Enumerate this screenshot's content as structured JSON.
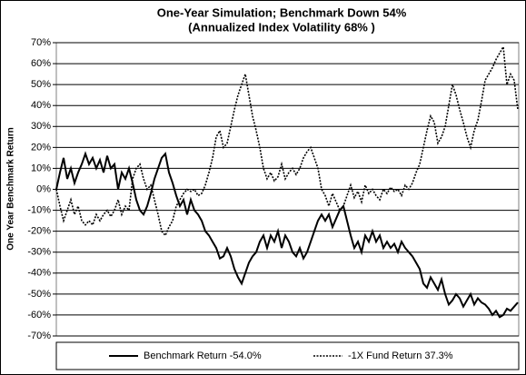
{
  "chart_data": {
    "type": "line",
    "title": "One-Year Simulation; Benchmark Down 54%",
    "subtitle": "(Annualized Index Volatility 68% )",
    "y_label": "One Year Benchmark Return",
    "ylim": [
      -70,
      70
    ],
    "yticks": [
      {
        "value": -70,
        "label": "-70%"
      },
      {
        "value": -60,
        "label": "-60%"
      },
      {
        "value": -50,
        "label": "-50%"
      },
      {
        "value": -40,
        "label": "-40%"
      },
      {
        "value": -30,
        "label": "-30%"
      },
      {
        "value": -20,
        "label": "-20%"
      },
      {
        "value": -10,
        "label": "-10%"
      },
      {
        "value": 0,
        "label": "0%"
      },
      {
        "value": 10,
        "label": "10%"
      },
      {
        "value": 20,
        "label": "20%"
      },
      {
        "value": 30,
        "label": "30%"
      },
      {
        "value": 40,
        "label": "40%"
      },
      {
        "value": 50,
        "label": "50%"
      },
      {
        "value": 60,
        "label": "60%"
      },
      {
        "value": 70,
        "label": "70%"
      }
    ],
    "grid": true,
    "legend": "bottom",
    "series": [
      {
        "name": "Benchmark Return -54.0%",
        "color": "#000000",
        "dash": "solid",
        "values": [
          0,
          8,
          15,
          5,
          10,
          3,
          8,
          12,
          17,
          12,
          15,
          10,
          14,
          8,
          16,
          10,
          12,
          0,
          8,
          5,
          10,
          3,
          -5,
          -10,
          -12,
          -8,
          -2,
          5,
          10,
          15,
          17,
          8,
          3,
          -3,
          -8,
          -5,
          -12,
          -5,
          -10,
          -12,
          -15,
          -20,
          -22,
          -25,
          -28,
          -33,
          -32,
          -28,
          -32,
          -38,
          -42,
          -45,
          -40,
          -35,
          -32,
          -30,
          -25,
          -22,
          -28,
          -22,
          -25,
          -20,
          -28,
          -22,
          -25,
          -30,
          -32,
          -28,
          -33,
          -30,
          -25,
          -20,
          -15,
          -12,
          -15,
          -12,
          -18,
          -14,
          -10,
          -8,
          -15,
          -22,
          -28,
          -25,
          -30,
          -22,
          -25,
          -20,
          -25,
          -22,
          -28,
          -25,
          -28,
          -26,
          -30,
          -25,
          -28,
          -30,
          -32,
          -35,
          -38,
          -45,
          -47,
          -42,
          -45,
          -48,
          -43,
          -50,
          -55,
          -53,
          -50,
          -52,
          -56,
          -53,
          -50,
          -55,
          -52,
          -54,
          -55,
          -57,
          -60,
          -58,
          -61,
          -60,
          -57,
          -58,
          -56,
          -54
        ]
      },
      {
        "name": "-1X Fund Return 37.3%",
        "color": "#000000",
        "dash": "dotted",
        "values": [
          0,
          -8,
          -15,
          -10,
          -5,
          -12,
          -8,
          -15,
          -17,
          -15,
          -17,
          -12,
          -15,
          -12,
          -10,
          -13,
          -10,
          -5,
          -12,
          -8,
          -10,
          5,
          10,
          12,
          5,
          0,
          2,
          -5,
          -12,
          -20,
          -22,
          -18,
          -15,
          -8,
          -5,
          -2,
          0,
          -1,
          0,
          -3,
          -2,
          2,
          8,
          15,
          25,
          28,
          20,
          22,
          30,
          38,
          45,
          50,
          55,
          45,
          35,
          28,
          20,
          10,
          5,
          8,
          4,
          6,
          12,
          5,
          8,
          10,
          7,
          10,
          15,
          18,
          20,
          15,
          10,
          0,
          -3,
          -8,
          -2,
          -6,
          -10,
          -8,
          -3,
          2,
          -4,
          -1,
          -6,
          2,
          -2,
          0,
          -3,
          -5,
          0,
          -2,
          1,
          -1,
          0,
          -3,
          2,
          0,
          3,
          8,
          12,
          20,
          28,
          35,
          32,
          22,
          25,
          30,
          40,
          50,
          45,
          38,
          32,
          25,
          20,
          28,
          33,
          42,
          52,
          55,
          58,
          62,
          65,
          68,
          50,
          55,
          52,
          38
        ]
      }
    ]
  }
}
